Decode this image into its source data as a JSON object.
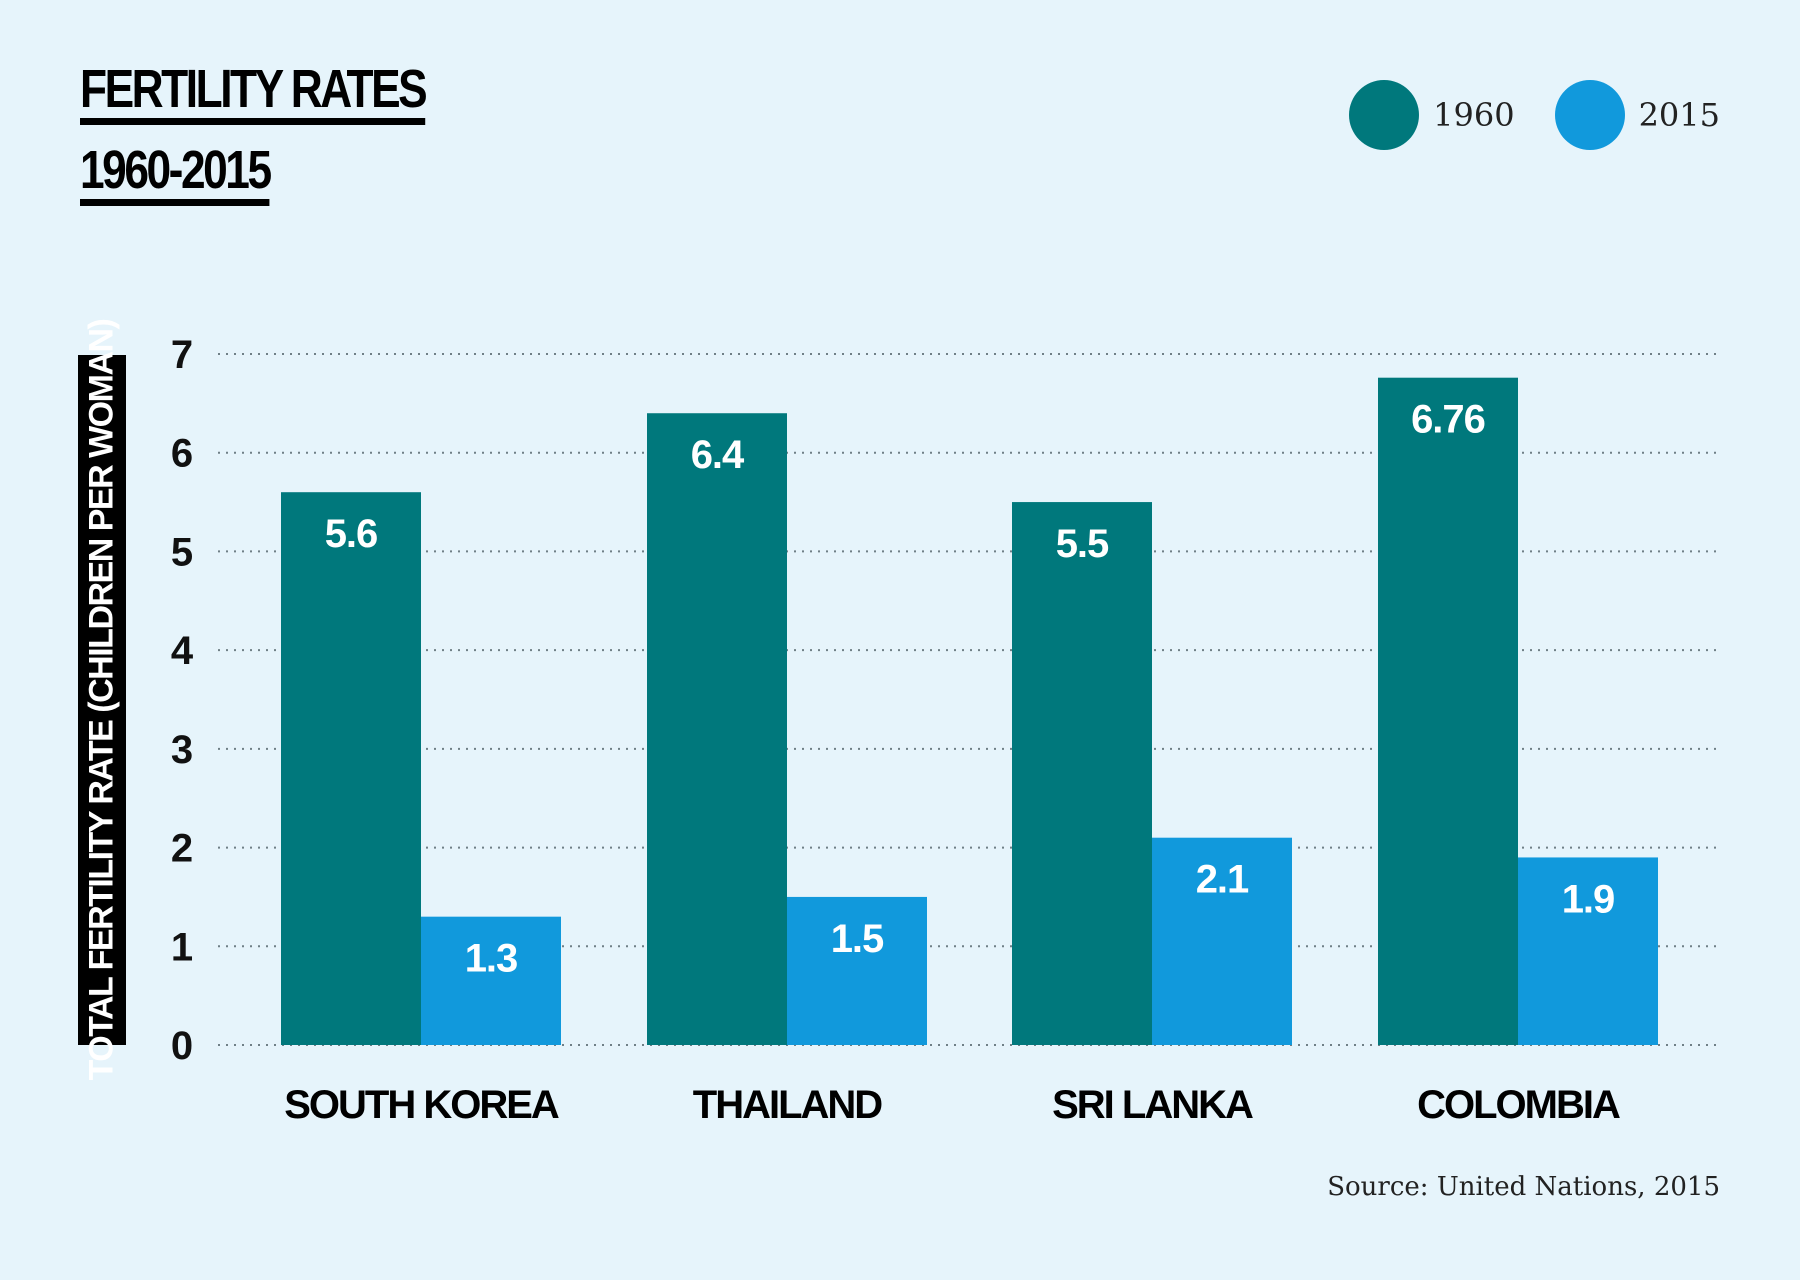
{
  "chart_data": {
    "type": "bar",
    "title_line1": "FERTILITY RATES",
    "title_line2": "1960-2015",
    "ylabel": "TOTAL FERTILITY RATE (CHILDREN PER WOMAN)",
    "xlabel": "",
    "ylim": [
      0,
      7
    ],
    "yticks": [
      "0",
      "1",
      "2",
      "3",
      "4",
      "5",
      "6",
      "7"
    ],
    "grid": true,
    "legend_position": "top-right",
    "categories": [
      "SOUTH KOREA",
      "THAILAND",
      "SRI LANKA",
      "COLOMBIA"
    ],
    "series": [
      {
        "name": "1960",
        "color": "#00787c",
        "values": [
          5.6,
          6.4,
          5.5,
          6.76
        ],
        "labels": [
          "5.6",
          "6.4",
          "5.5",
          "6.76"
        ]
      },
      {
        "name": "2015",
        "color": "#1199dc",
        "values": [
          1.3,
          1.5,
          2.1,
          1.9
        ],
        "labels": [
          "1.3",
          "1.5",
          "2.1",
          "1.9"
        ]
      }
    ],
    "source": "Source: United Nations, 2015"
  }
}
